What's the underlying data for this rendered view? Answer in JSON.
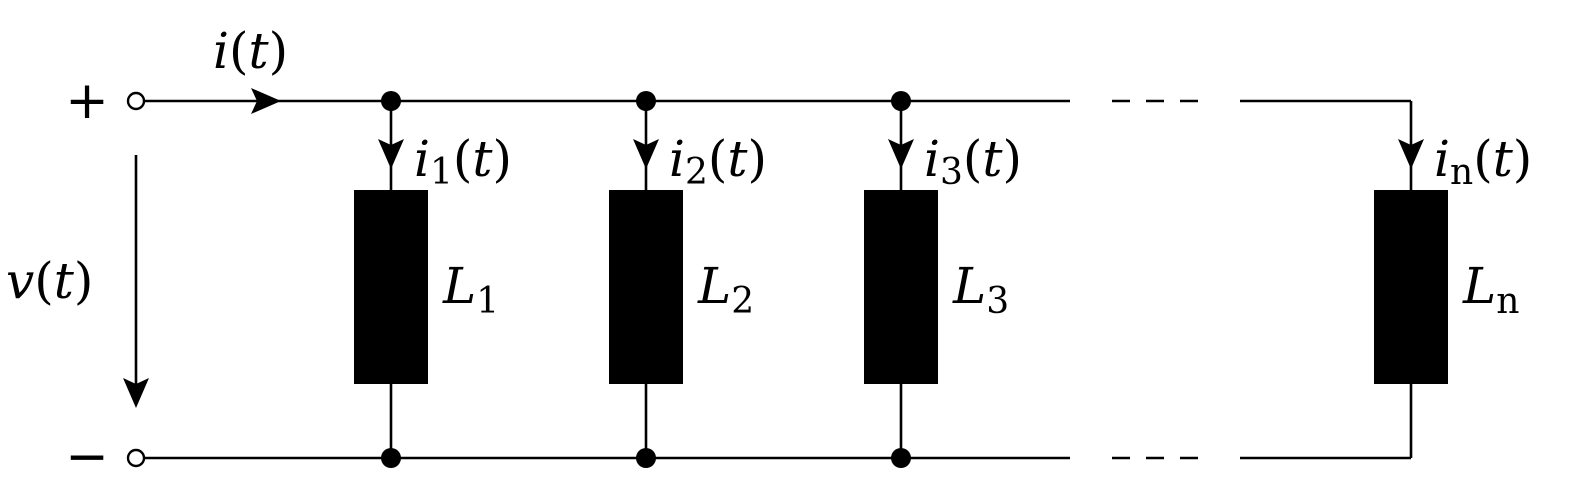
{
  "terminals": {
    "plus": "+",
    "minus": "−"
  },
  "source": {
    "current": {
      "sym": "i",
      "arg": "t"
    },
    "voltage": {
      "sym": "v",
      "arg": "t"
    }
  },
  "branches": [
    {
      "current": {
        "sym": "i",
        "sub": "1",
        "arg": "t"
      },
      "inductor": {
        "sym": "L",
        "sub": "1"
      }
    },
    {
      "current": {
        "sym": "i",
        "sub": "2",
        "arg": "t"
      },
      "inductor": {
        "sym": "L",
        "sub": "2"
      }
    },
    {
      "current": {
        "sym": "i",
        "sub": "3",
        "arg": "t"
      },
      "inductor": {
        "sym": "L",
        "sub": "3"
      }
    },
    {
      "current": {
        "sym": "i",
        "sub": "n",
        "arg": "t"
      },
      "inductor": {
        "sym": "L",
        "sub": "n"
      }
    }
  ]
}
